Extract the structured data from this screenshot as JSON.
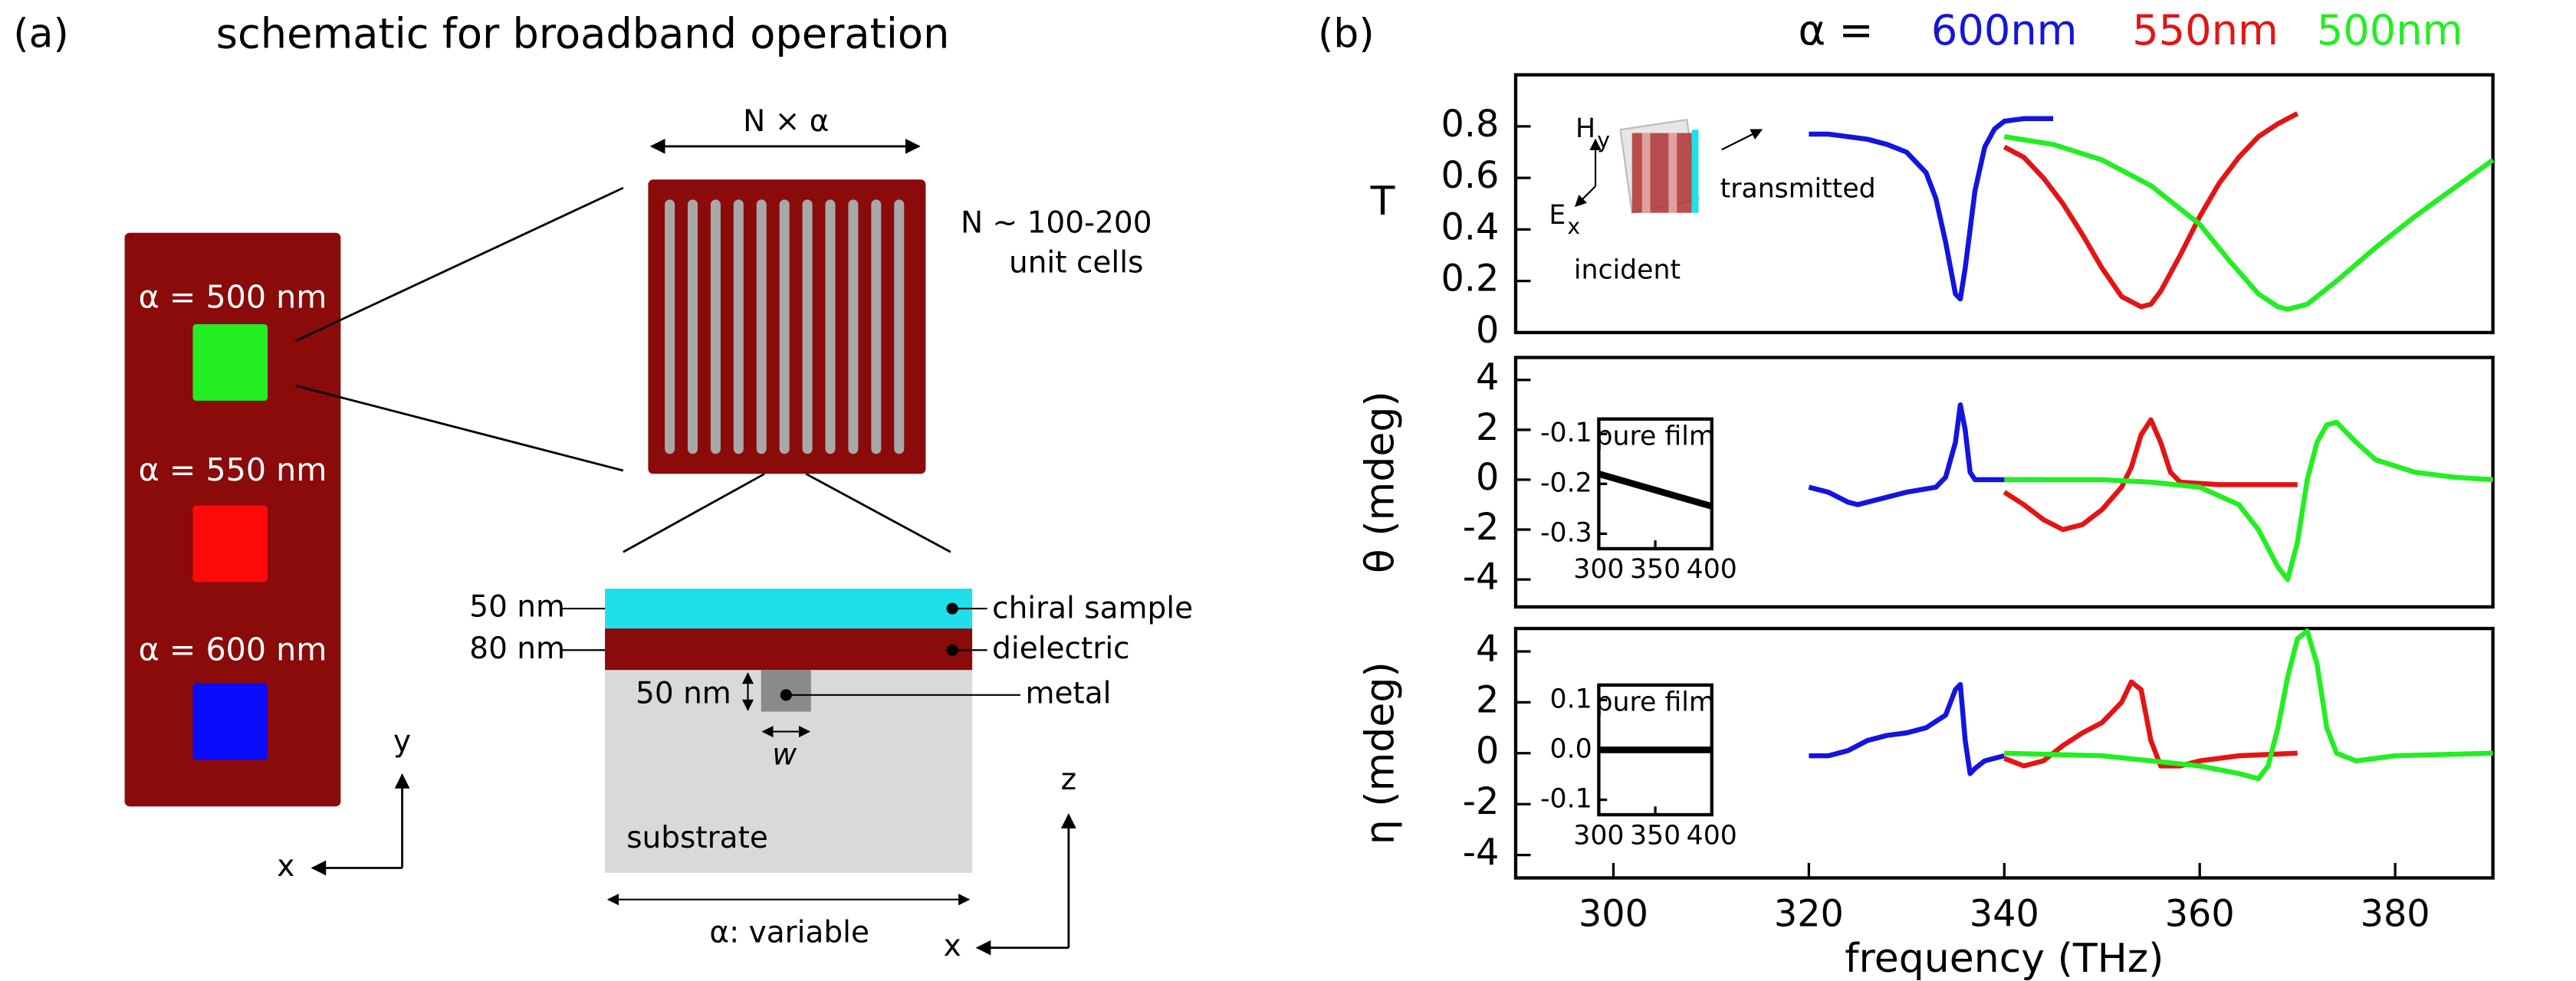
{
  "schematic": {
    "panel_label": "(a)",
    "title": "schematic for broadband operation",
    "samples": [
      "α = 500 nm",
      "α = 550 nm",
      "α = 600 nm"
    ],
    "array_width": "N × α",
    "cell_count": "N ~ 100-200",
    "cell_unit": "unit cells",
    "layer_thickness": [
      "50 nm",
      "80 nm"
    ],
    "layers": [
      "chiral sample",
      "dielectric",
      "metal"
    ],
    "metal_height": "50 nm",
    "width": "w",
    "substrate": "substrate",
    "period": "α: variable",
    "axes_top": [
      "y",
      "x"
    ],
    "axes_side": [
      "z",
      "x"
    ]
  },
  "panel_b_label": "(b)",
  "chart_data": [
    {
      "type": "line",
      "ylabel": "T",
      "legend_title": "α =",
      "annotations": [
        {
          "text": "H",
          "sub": "y"
        },
        {
          "text": "E",
          "sub": "x"
        },
        {
          "text": "transmitted"
        },
        {
          "text": "incident"
        }
      ],
      "xlim": [
        290,
        390
      ],
      "ylim": [
        0,
        1
      ],
      "yticks": [
        0,
        0.2,
        0.4,
        0.6,
        0.8
      ],
      "series": [
        {
          "name": "600nm",
          "color": "#1414e0",
          "x": [
            320,
            322,
            324,
            326,
            328,
            330,
            332,
            333,
            334,
            335,
            335.5,
            336,
            337,
            338,
            339,
            340,
            342,
            345
          ],
          "values": [
            0.77,
            0.77,
            0.76,
            0.75,
            0.73,
            0.7,
            0.62,
            0.52,
            0.35,
            0.15,
            0.13,
            0.25,
            0.55,
            0.72,
            0.79,
            0.82,
            0.83,
            0.83
          ]
        },
        {
          "name": "550nm",
          "color": "#e41414",
          "x": [
            340,
            342,
            344,
            346,
            348,
            350,
            352,
            354,
            355,
            356,
            358,
            360,
            362,
            364,
            366,
            368,
            370
          ],
          "values": [
            0.72,
            0.68,
            0.6,
            0.5,
            0.38,
            0.25,
            0.14,
            0.1,
            0.11,
            0.16,
            0.3,
            0.45,
            0.58,
            0.68,
            0.76,
            0.81,
            0.85
          ]
        },
        {
          "name": "500nm",
          "color": "#22ee22",
          "x": [
            340,
            345,
            350,
            355,
            360,
            363,
            366,
            368,
            369,
            371,
            374,
            378,
            382,
            386,
            390
          ],
          "values": [
            0.76,
            0.73,
            0.67,
            0.57,
            0.42,
            0.28,
            0.15,
            0.1,
            0.09,
            0.11,
            0.2,
            0.33,
            0.45,
            0.56,
            0.67
          ]
        }
      ]
    },
    {
      "type": "line",
      "ylabel": "θ (mdeg)",
      "xlim": [
        290,
        390
      ],
      "ylim": [
        -5.1,
        4.9
      ],
      "yticks": [
        -4,
        -2,
        0,
        2,
        4
      ],
      "series": [
        {
          "color": "#1414e0",
          "x": [
            320,
            322,
            324,
            325,
            327,
            330,
            333,
            334,
            335,
            335.5,
            336,
            336.5,
            337,
            340,
            344
          ],
          "values": [
            -0.3,
            -0.5,
            -0.9,
            -1.0,
            -0.8,
            -0.5,
            -0.3,
            0.1,
            1.5,
            3.0,
            2.0,
            0.3,
            0,
            0,
            0
          ]
        },
        {
          "color": "#e41414",
          "x": [
            340,
            342,
            344,
            346,
            348,
            350,
            352,
            353,
            354,
            355,
            356,
            357,
            358,
            362,
            366,
            370
          ],
          "values": [
            -0.5,
            -1.0,
            -1.6,
            -2.0,
            -1.8,
            -1.2,
            -0.3,
            0.5,
            1.8,
            2.4,
            1.5,
            0.3,
            -0.1,
            -0.2,
            -0.2,
            -0.2
          ]
        },
        {
          "color": "#22ee22",
          "x": [
            340,
            350,
            355,
            360,
            364,
            366,
            368,
            369,
            370,
            371,
            372,
            373,
            374,
            376,
            378,
            382,
            386,
            390
          ],
          "values": [
            0,
            0,
            -0.1,
            -0.3,
            -1.0,
            -2.0,
            -3.5,
            -4.0,
            -2.5,
            0,
            1.5,
            2.2,
            2.3,
            1.5,
            0.8,
            0.3,
            0.1,
            0
          ]
        }
      ]
    },
    {
      "type": "line",
      "ylabel": "η (mdeg)",
      "xlabel": "frequency (THz)",
      "xlim": [
        290,
        390
      ],
      "xticks": [
        300,
        320,
        340,
        360,
        380
      ],
      "ylim": [
        -4.9,
        4.9
      ],
      "yticks": [
        -4,
        -2,
        0,
        2,
        4
      ],
      "series": [
        {
          "color": "#1414e0",
          "x": [
            320,
            322,
            324,
            326,
            328,
            330,
            332,
            334,
            335,
            335.5,
            336,
            336.5,
            337,
            338,
            340
          ],
          "values": [
            -0.1,
            -0.1,
            0.1,
            0.5,
            0.7,
            0.8,
            1.0,
            1.5,
            2.5,
            2.7,
            0.5,
            -0.8,
            -0.6,
            -0.3,
            -0.1
          ]
        },
        {
          "color": "#e41414",
          "x": [
            340,
            342,
            344,
            346,
            348,
            350,
            352,
            353,
            354,
            355,
            356,
            358,
            360,
            364,
            370
          ],
          "values": [
            -0.2,
            -0.5,
            -0.3,
            0.3,
            0.8,
            1.2,
            2.0,
            2.8,
            2.5,
            0.5,
            -0.5,
            -0.5,
            -0.3,
            -0.1,
            0
          ]
        },
        {
          "color": "#22ee22",
          "x": [
            340,
            350,
            355,
            360,
            364,
            366,
            367,
            368,
            369,
            370,
            371,
            372,
            373,
            374,
            376,
            380,
            390
          ],
          "values": [
            0,
            -0.1,
            -0.3,
            -0.5,
            -0.8,
            -1.0,
            -0.5,
            1.0,
            3.0,
            4.5,
            4.8,
            3.5,
            1.0,
            0,
            -0.3,
            -0.1,
            0
          ]
        }
      ]
    },
    {
      "type": "line",
      "title": "pure film",
      "xlim": [
        300,
        400
      ],
      "xticks": [
        300,
        350,
        400
      ],
      "ylim": [
        -0.33,
        -0.07
      ],
      "yticks": [
        -0.1,
        -0.2,
        -0.3
      ],
      "series": [
        {
          "color": "#000000",
          "x": [
            300,
            400
          ],
          "values": [
            -0.18,
            -0.245
          ]
        }
      ]
    },
    {
      "type": "line",
      "title": "pure film",
      "xlim": [
        300,
        400
      ],
      "xticks": [
        300,
        350,
        400
      ],
      "ylim": [
        -0.13,
        0.13
      ],
      "yticks": [
        0.1,
        {
          "value": 0,
          "label": "0.0"
        },
        -0.1
      ],
      "series": [
        {
          "color": "#000000",
          "x": [
            300,
            400
          ],
          "values": [
            0,
            0
          ]
        }
      ]
    }
  ]
}
